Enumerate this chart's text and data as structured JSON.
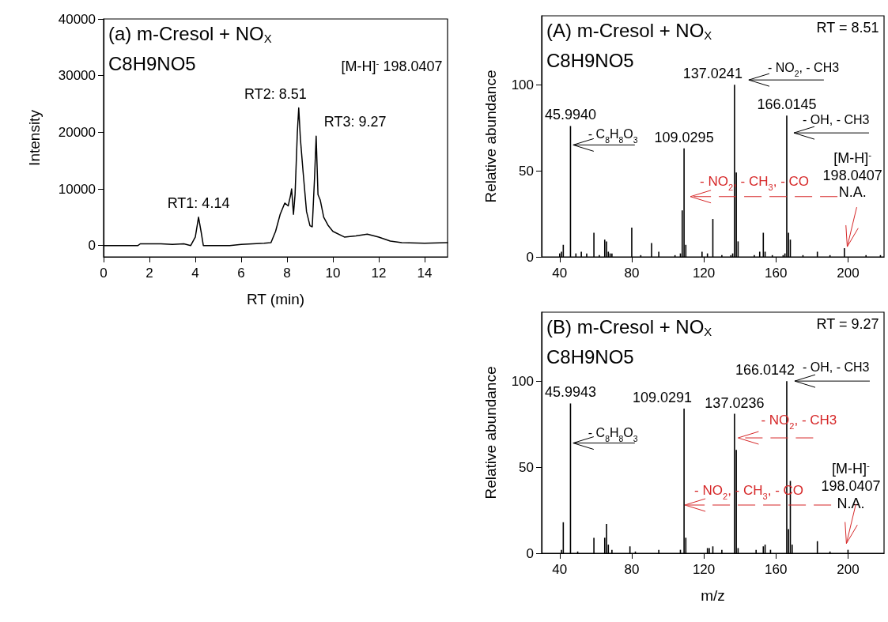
{
  "chart_data": [
    {
      "type": "line",
      "title": "(a) m-Cresol + NO$_{X}$",
      "subtitle": "C8H9NO5",
      "xlabel": "RT (min)",
      "ylabel": "Intensity",
      "color": "#000000",
      "marker": "none",
      "x": [
        0,
        1.5,
        1.6,
        2,
        2.5,
        3,
        3.5,
        3.8,
        4.0,
        4.14,
        4.25,
        4.35,
        5.5,
        6,
        6.5,
        7,
        7.3,
        7.5,
        7.7,
        7.9,
        8.05,
        8.15,
        8.2,
        8.28,
        8.35,
        8.45,
        8.51,
        8.58,
        8.7,
        8.85,
        9.0,
        9.1,
        9.2,
        9.27,
        9.35,
        9.45,
        9.6,
        9.8,
        10,
        10.5,
        11,
        11.5,
        12,
        12.5,
        13,
        14,
        15
      ],
      "values": [
        0,
        0,
        300,
        300,
        300,
        200,
        300,
        0,
        1500,
        5000,
        2500,
        0,
        0,
        200,
        300,
        400,
        500,
        2500,
        5500,
        7500,
        7000,
        8800,
        10000,
        5500,
        9000,
        20000,
        24300,
        19000,
        13000,
        6000,
        3500,
        3300,
        12000,
        19300,
        9000,
        8000,
        5000,
        3500,
        2500,
        1500,
        1700,
        2000,
        1500,
        800,
        500,
        400,
        500
      ],
      "xlim": [
        0,
        15
      ],
      "xticks": [
        0,
        2,
        4,
        6,
        8,
        10,
        12,
        14
      ],
      "ylim": [
        -2000,
        40000
      ],
      "yticks": [
        0,
        10000,
        20000,
        30000,
        40000
      ],
      "annotations": [
        {
          "text": "RT1: 4.14",
          "x": 4.14,
          "y": 5000
        },
        {
          "text": "RT2: 8.51",
          "x": 8.51,
          "y": 24300
        },
        {
          "text": "RT3: 9.27",
          "x": 9.27,
          "y": 19300
        },
        "[M-H]$^{-}$ 198.0407"
      ]
    },
    {
      "type": "bar",
      "title": "(A) m-Cresol + NO$_{X}$",
      "subtitle": "C8H9NO5",
      "ylabel": "Relative abundance",
      "color": "#000000",
      "x": [
        40,
        41,
        42,
        45.994,
        49,
        52,
        55,
        59,
        62,
        65,
        66,
        67,
        68,
        69,
        80,
        85,
        91,
        95,
        104,
        107,
        108,
        109.0295,
        110,
        119,
        122,
        125,
        130,
        135,
        136,
        137.0241,
        138,
        139,
        148,
        151,
        153,
        154,
        158,
        164,
        165,
        166.0145,
        167,
        168,
        175,
        183,
        190,
        198,
        210,
        218
      ],
      "values": [
        2,
        3,
        7,
        76,
        2,
        3,
        2,
        14,
        1,
        10,
        9,
        3,
        2,
        2,
        17,
        1,
        8,
        3,
        1,
        2,
        27,
        63,
        7,
        3,
        2,
        22,
        1,
        1,
        2,
        100,
        49,
        9,
        1,
        3,
        14,
        3,
        1,
        1,
        2,
        82,
        14,
        10,
        1,
        3,
        1,
        5,
        1,
        1
      ],
      "xlim": [
        30,
        220
      ],
      "xticks": [
        40,
        80,
        120,
        160,
        200
      ],
      "ylim": [
        0,
        140
      ],
      "yticks": [
        0,
        50,
        100
      ],
      "annotations": [
        {
          "text": "45.9940",
          "x": 45.994,
          "y": 76
        },
        {
          "text": "109.0295",
          "x": 109.0295,
          "y": 63
        },
        {
          "text": "137.0241",
          "x": 137.0241,
          "y": 100
        },
        {
          "text": "166.0145",
          "x": 166.0145,
          "y": 82
        },
        {
          "text": "- C$_{8}$H$_{8}$O$_{3}$",
          "x": 45.994,
          "y": 65
        },
        {
          "text": "- NO$_{2}$, - CH3",
          "x": 137.0241,
          "y": 100
        },
        {
          "text": "- OH, - CH3",
          "x": 166.0145,
          "y": 72
        },
        {
          "text": "- NO$_{2}$, - CH$_{3}$, - CO",
          "x": 109.0295,
          "y": 35
        },
        "RT = 8.51",
        {
          "text": "[M-H]$^{-}$\n198.0407\nN.A.",
          "x": 198,
          "y": 5
        }
      ]
    },
    {
      "type": "bar",
      "title": "(B) m-Cresol + NO$_{X}$",
      "subtitle": "C8H9NO5",
      "xlabel": "m/z",
      "ylabel": "Relative abundance",
      "color": "#000000",
      "x": [
        41,
        42,
        45.9943,
        50,
        59,
        65,
        66,
        67,
        69,
        79,
        82,
        95,
        107,
        109.0291,
        110,
        122,
        123,
        125,
        130,
        137.0236,
        138,
        139,
        149,
        153,
        154,
        157,
        166.0142,
        167,
        168,
        169,
        183,
        190,
        200
      ],
      "values": [
        2,
        18,
        87,
        1,
        9,
        9,
        17,
        5,
        2,
        4,
        1,
        2,
        2,
        84,
        9,
        3,
        3,
        4,
        2,
        81,
        60,
        3,
        2,
        4,
        5,
        2,
        100,
        14,
        42,
        5,
        7,
        1,
        2
      ],
      "xlim": [
        30,
        220
      ],
      "xticks": [
        40,
        80,
        120,
        160,
        200
      ],
      "ylim": [
        0,
        140
      ],
      "yticks": [
        0,
        50,
        100
      ],
      "annotations": [
        {
          "text": "45.9943",
          "x": 45.9943,
          "y": 87
        },
        {
          "text": "109.0291",
          "x": 109.0291,
          "y": 84
        },
        {
          "text": "137.0236",
          "x": 137.0236,
          "y": 81
        },
        {
          "text": "166.0142",
          "x": 166.0142,
          "y": 100
        },
        {
          "text": "- C$_{8}$H$_{8}$O$_{3}$",
          "x": 45.9943,
          "y": 64
        },
        {
          "text": "- OH, - CH3",
          "x": 166.0142,
          "y": 100
        },
        {
          "text": "- NO$_{2}$, - CH3",
          "x": 137.0236,
          "y": 67
        },
        {
          "text": "- NO$_{2}$, - CH$_{3}$, - CO",
          "x": 109.0291,
          "y": 28
        },
        "RT = 9.27",
        {
          "text": "[M-H]$^{-}$\n198.0407\nN.A.",
          "x": 200,
          "y": 2
        }
      ]
    }
  ]
}
